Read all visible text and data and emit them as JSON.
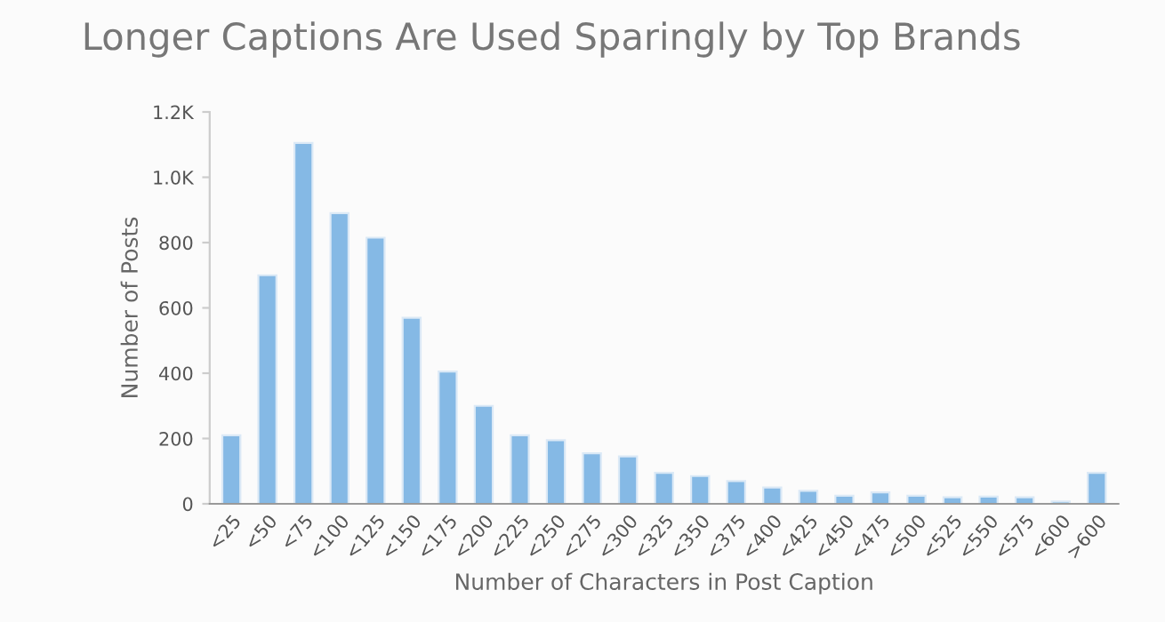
{
  "chart_data": {
    "type": "bar",
    "title": "Longer Captions Are Used Sparingly by Top Brands",
    "xlabel": "Number of Characters in Post Caption",
    "ylabel": "Number of Posts",
    "categories": [
      "<25",
      "<50",
      "<75",
      "<100",
      "<125",
      "<150",
      "<175",
      "<200",
      "<225",
      "<250",
      "<275",
      "<300",
      "<325",
      "<350",
      "<375",
      "<400",
      "<425",
      "<450",
      "<475",
      "<500",
      "<525",
      "<550",
      "<575",
      "<600",
      ">600"
    ],
    "values": [
      210,
      700,
      1105,
      890,
      815,
      570,
      405,
      300,
      210,
      195,
      155,
      145,
      95,
      85,
      70,
      50,
      40,
      25,
      35,
      25,
      20,
      22,
      20,
      7,
      95
    ],
    "color": "#85b9e5",
    "ylim": [
      0,
      1200
    ],
    "yticks": [
      0,
      200,
      400,
      600,
      800,
      {
        "value": 1000,
        "label": "1.0K"
      },
      {
        "value": 1200,
        "label": "1.2K"
      }
    ],
    "grid": false,
    "legend": false
  }
}
